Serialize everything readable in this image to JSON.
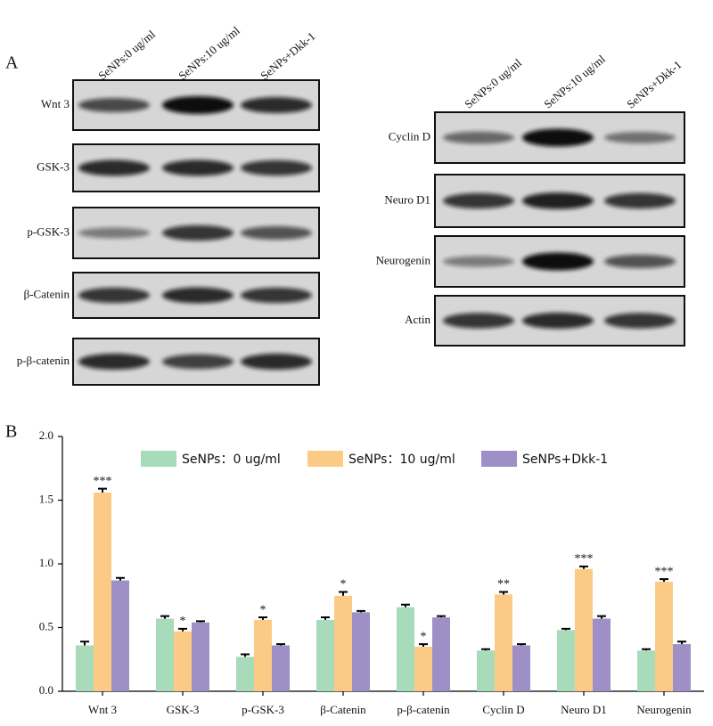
{
  "panel_a": {
    "label": "A",
    "left": {
      "columns": [
        "SeNPs:0 ug/ml",
        "SeNPs:10 ug/ml",
        "SeNPs+Dkk-1"
      ],
      "rows": [
        "Wnt 3",
        "GSK-3",
        "p-GSK-3",
        "β-Catenin",
        "p-β-catenin"
      ]
    },
    "right": {
      "columns": [
        "SeNPs:0 ug/ml",
        "SeNPs:10 ug/ml",
        "SeNPs+Dkk-1"
      ],
      "rows": [
        "Cyclin D",
        "Neuro D1",
        "Neurogenin",
        "Actin"
      ]
    }
  },
  "chart_data": {
    "type": "bar",
    "panel_label": "B",
    "categories": [
      "Wnt 3",
      "GSK-3",
      "p-GSK-3",
      "β-Catenin",
      "p-β-catenin",
      "Cyclin D",
      "Neuro D1",
      "Neurogenin"
    ],
    "series": [
      {
        "name": "SeNPs：0 ug/ml",
        "color": "#a8dbb9",
        "values": [
          0.36,
          0.57,
          0.27,
          0.56,
          0.66,
          0.32,
          0.48,
          0.32
        ],
        "errors": [
          0.03,
          0.02,
          0.02,
          0.02,
          0.02,
          0.01,
          0.01,
          0.01
        ]
      },
      {
        "name": "SeNPs：10 ug/ml",
        "color": "#fbcb86",
        "values": [
          1.56,
          0.47,
          0.56,
          0.75,
          0.35,
          0.76,
          0.96,
          0.86
        ],
        "errors": [
          0.03,
          0.02,
          0.02,
          0.03,
          0.02,
          0.02,
          0.02,
          0.02
        ],
        "significance": [
          "***",
          "*",
          "*",
          "*",
          "*",
          "**",
          "***",
          "***"
        ]
      },
      {
        "name": "SeNPs+Dkk-1",
        "color": "#9e8fc7",
        "values": [
          0.87,
          0.54,
          0.36,
          0.62,
          0.58,
          0.36,
          0.57,
          0.37
        ],
        "errors": [
          0.02,
          0.01,
          0.01,
          0.01,
          0.01,
          0.01,
          0.02,
          0.02
        ]
      }
    ],
    "ylim": [
      0,
      2
    ],
    "yticks": [
      {
        "value": 0,
        "label": "0.0"
      },
      0.5,
      {
        "value": 1,
        "label": "1.0"
      },
      1.5,
      {
        "value": 2,
        "label": "2.0"
      }
    ]
  }
}
